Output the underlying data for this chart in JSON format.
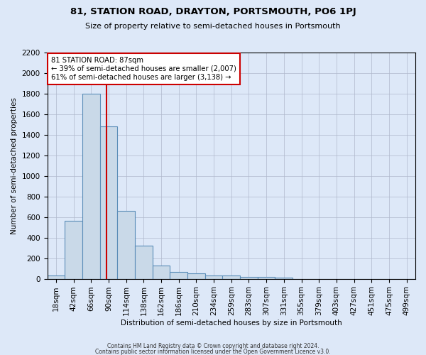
{
  "title": "81, STATION ROAD, DRAYTON, PORTSMOUTH, PO6 1PJ",
  "subtitle": "Size of property relative to semi-detached houses in Portsmouth",
  "xlabel": "Distribution of semi-detached houses by size in Portsmouth",
  "ylabel": "Number of semi-detached properties",
  "bar_color": "#c9d9e8",
  "bar_edge_color": "#5b8db8",
  "bar_values": [
    35,
    560,
    1800,
    1480,
    660,
    325,
    125,
    65,
    55,
    35,
    30,
    20,
    15,
    10,
    0,
    0,
    0,
    0,
    0,
    0,
    0
  ],
  "bar_labels": [
    "18sqm",
    "42sqm",
    "66sqm",
    "90sqm",
    "114sqm",
    "138sqm",
    "162sqm",
    "186sqm",
    "210sqm",
    "234sqm",
    "259sqm",
    "283sqm",
    "307sqm",
    "331sqm",
    "355sqm",
    "379sqm",
    "403sqm",
    "427sqm",
    "451sqm",
    "475sqm",
    "499sqm"
  ],
  "ylim": [
    0,
    2200
  ],
  "yticks": [
    0,
    200,
    400,
    600,
    800,
    1000,
    1200,
    1400,
    1600,
    1800,
    2000,
    2200
  ],
  "marker_value": 87,
  "marker_label": "81 STATION ROAD: 87sqm",
  "smaller_pct": 39,
  "smaller_count": 2007,
  "larger_pct": 61,
  "larger_count": 3138,
  "vline_color": "#cc0000",
  "annotation_box_color": "#ffffff",
  "annotation_box_edge": "#cc0000",
  "grid_color": "#b0b8cc",
  "background_color": "#dde8f8",
  "footer_line1": "Contains HM Land Registry data © Crown copyright and database right 2024.",
  "footer_line2": "Contains public sector information licensed under the Open Government Licence v3.0."
}
